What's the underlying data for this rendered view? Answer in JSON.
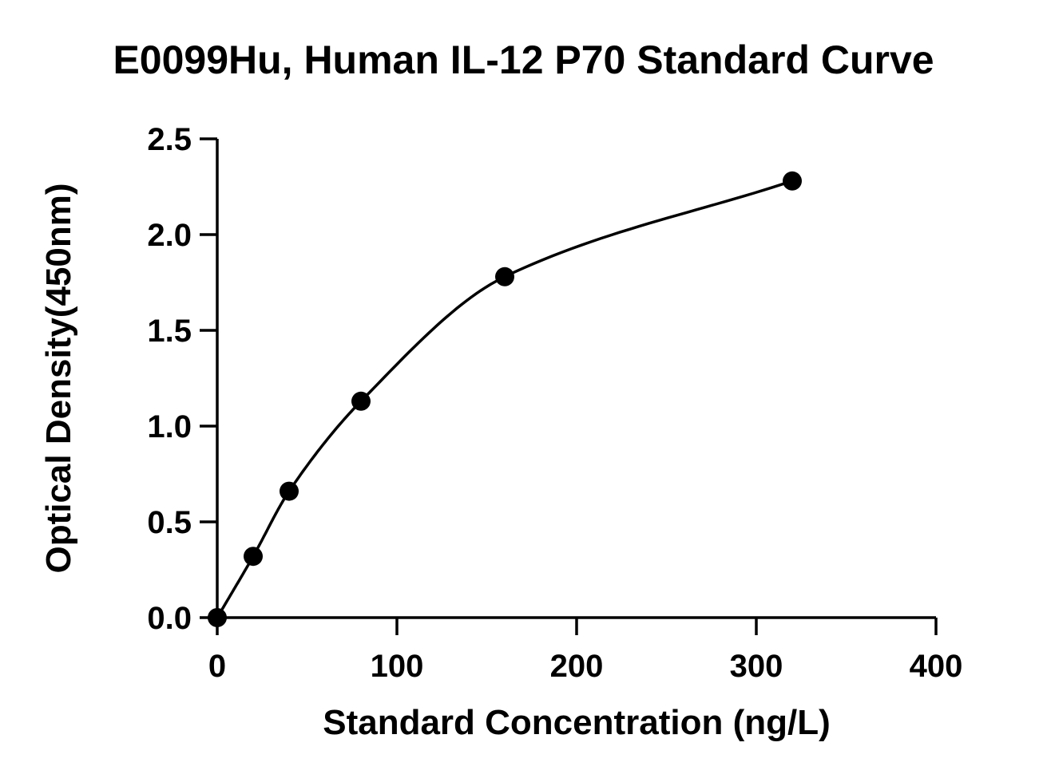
{
  "chart_data": {
    "type": "scatter",
    "title": "E0099Hu, Human IL-12 P70 Standard Curve",
    "xlabel": "Standard Concentration (ng/L)",
    "ylabel": "Optical Density(450nm)",
    "xlim": [
      0,
      400
    ],
    "ylim": [
      0,
      2.5
    ],
    "xticks": [
      0,
      100,
      200,
      300,
      400
    ],
    "yticks": [
      0.0,
      0.5,
      1.0,
      1.5,
      2.0,
      2.5
    ],
    "xtick_labels": [
      "0",
      "100",
      "200",
      "300",
      "400"
    ],
    "ytick_labels": [
      "0.0",
      "0.5",
      "1.0",
      "1.5",
      "2.0",
      "2.5"
    ],
    "grid": false,
    "series": [
      {
        "x": [
          0,
          20,
          40,
          80,
          160,
          320
        ],
        "y": [
          0.0,
          0.32,
          0.66,
          1.13,
          1.78,
          2.28
        ]
      }
    ],
    "fit_curve": true,
    "colors": {
      "line": "#000000",
      "points": "#000000"
    }
  }
}
